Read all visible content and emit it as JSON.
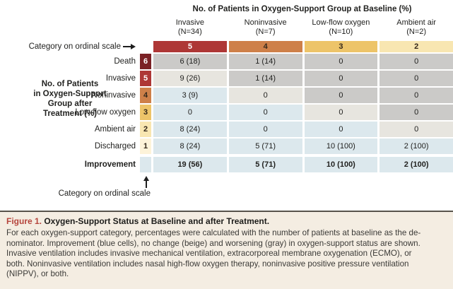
{
  "title": "No. of Patients in Oxygen-Support Group at Baseline (%)",
  "left_label": "No. of Patients\nin Oxygen-Support\nGroup after\nTreatment (%)",
  "top_axis_label": "Category on ordinal scale",
  "bottom_axis_label": "Category on ordinal scale",
  "columns": [
    {
      "name": "Invasive",
      "n": "(N=34)",
      "ordinal": "5"
    },
    {
      "name": "Noninvasive",
      "n": "(N=7)",
      "ordinal": "4"
    },
    {
      "name": "Low-flow oxygen",
      "n": "(N=10)",
      "ordinal": "3"
    },
    {
      "name": "Ambient air",
      "n": "(N=2)",
      "ordinal": "2"
    }
  ],
  "rows": [
    {
      "label": "Death",
      "ordinal": "6",
      "cells": [
        {
          "text": "6 (18)",
          "status": "worse"
        },
        {
          "text": "1 (14)",
          "status": "worse"
        },
        {
          "text": "0",
          "status": "worse"
        },
        {
          "text": "0",
          "status": "worse"
        }
      ]
    },
    {
      "label": "Invasive",
      "ordinal": "5",
      "cells": [
        {
          "text": "9 (26)",
          "status": "same"
        },
        {
          "text": "1 (14)",
          "status": "worse"
        },
        {
          "text": "0",
          "status": "worse"
        },
        {
          "text": "0",
          "status": "worse"
        }
      ]
    },
    {
      "label": "Noninvasive",
      "ordinal": "4",
      "cells": [
        {
          "text": "3 (9)",
          "status": "improve"
        },
        {
          "text": "0",
          "status": "same"
        },
        {
          "text": "0",
          "status": "worse"
        },
        {
          "text": "0",
          "status": "worse"
        }
      ]
    },
    {
      "label": "Low-flow oxygen",
      "ordinal": "3",
      "cells": [
        {
          "text": "0",
          "status": "improve"
        },
        {
          "text": "0",
          "status": "improve"
        },
        {
          "text": "0",
          "status": "same"
        },
        {
          "text": "0",
          "status": "worse"
        }
      ]
    },
    {
      "label": "Ambient air",
      "ordinal": "2",
      "cells": [
        {
          "text": "8 (24)",
          "status": "improve"
        },
        {
          "text": "0",
          "status": "improve"
        },
        {
          "text": "0",
          "status": "improve"
        },
        {
          "text": "0",
          "status": "same"
        }
      ]
    },
    {
      "label": "Discharged",
      "ordinal": "1",
      "cells": [
        {
          "text": "8 (24)",
          "status": "improve"
        },
        {
          "text": "5 (71)",
          "status": "improve"
        },
        {
          "text": "10 (100)",
          "status": "improve"
        },
        {
          "text": "2 (100)",
          "status": "improve"
        }
      ]
    }
  ],
  "improvement": {
    "label": "Improvement",
    "cells": [
      {
        "text": "19 (56)",
        "status": "improve"
      },
      {
        "text": "5 (71)",
        "status": "improve"
      },
      {
        "text": "10 (100)",
        "status": "improve"
      },
      {
        "text": "2 (100)",
        "status": "improve"
      }
    ]
  },
  "legend_colors": {
    "improvement_blue": "#dce8ed",
    "no_change_beige": "#e7e5df",
    "worsening_gray": "#cbcac8",
    "ordinal_6": "#7b2125",
    "ordinal_5": "#ae3736",
    "ordinal_4": "#ce8049",
    "ordinal_3": "#edc469",
    "ordinal_2": "#f8e6b1",
    "ordinal_1": "#fdf3d9",
    "figure_label_red": "#b5443c",
    "caption_background": "#f4ede2"
  },
  "caption": {
    "figure_label": "Figure 1.",
    "title": " Oxygen-Support Status at Baseline and after Treatment.",
    "body": "For each oxygen-support category, percentages were calculated with the number of patients at baseline as the de-\nnominator. Improvement (blue cells), no change (beige) and worsening (gray) in oxygen-support status are shown.\nInvasive ventilation includes invasive mechanical ventilation, extracorporeal membrane oxygenation (ECMO), or\nboth. Noninvasive ventilation includes nasal high-flow oxygen therapy, noninvasive positive pressure ventilation\n(NIPPV), or both."
  },
  "chart_data": {
    "type": "heatmap",
    "title": "No. of Patients in Oxygen-Support Group at Baseline (%)",
    "x_categories": [
      "Invasive (N=34)",
      "Noninvasive (N=7)",
      "Low-flow oxygen (N=10)",
      "Ambient air (N=2)"
    ],
    "x_ordinals": [
      5,
      4,
      3,
      2
    ],
    "y_categories": [
      "Death",
      "Invasive",
      "Noninvasive",
      "Low-flow oxygen",
      "Ambient air",
      "Discharged"
    ],
    "y_ordinals": [
      6,
      5,
      4,
      3,
      2,
      1
    ],
    "values": [
      [
        "6 (18)",
        "1 (14)",
        "0",
        "0"
      ],
      [
        "9 (26)",
        "1 (14)",
        "0",
        "0"
      ],
      [
        "3 (9)",
        "0",
        "0",
        "0"
      ],
      [
        "0",
        "0",
        "0",
        "0"
      ],
      [
        "8 (24)",
        "0",
        "0",
        "0"
      ],
      [
        "8 (24)",
        "5 (71)",
        "10 (100)",
        "2 (100)"
      ]
    ],
    "improvement_totals": [
      "19 (56)",
      "5 (71)",
      "10 (100)",
      "2 (100)"
    ],
    "cell_status_legend": {
      "improve": "blue",
      "no_change": "beige",
      "worsening": "gray"
    }
  }
}
